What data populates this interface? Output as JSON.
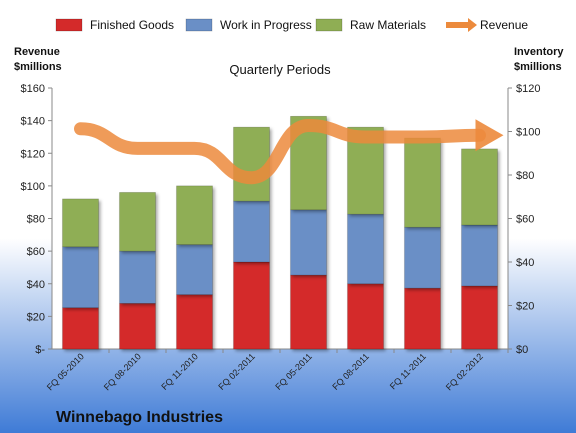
{
  "chart_data": {
    "type": "bar",
    "subtitle": "Quarterly Periods",
    "company": "Winnebago Industries",
    "left_axis_label": [
      "Revenue",
      "$millions"
    ],
    "right_axis_label": [
      "Inventory",
      "$millions"
    ],
    "categories": [
      "FQ 05-2010",
      "FQ 08-2010",
      "FQ 11-2010",
      "FQ 02-2011",
      "FQ 05-2011",
      "FQ 08-2011",
      "FQ 11-2011",
      "FQ 02-2012"
    ],
    "stacked": true,
    "series": [
      {
        "name": "Finished Goods",
        "color": "#d42a2a",
        "axis": "right",
        "values": [
          19,
          21,
          25,
          40,
          34,
          30,
          28,
          29
        ]
      },
      {
        "name": "Work in Progress",
        "color": "#6a8fc6",
        "axis": "right",
        "values": [
          28,
          24,
          23,
          28,
          30,
          32,
          28,
          28
        ]
      },
      {
        "name": "Raw Materials",
        "color": "#8fae54",
        "axis": "right",
        "values": [
          22,
          27,
          27,
          34,
          43,
          40,
          41,
          35
        ]
      },
      {
        "name": "Revenue",
        "color": "#ec8a3c",
        "type": "line",
        "axis": "left",
        "values": [
          135,
          123,
          123,
          105,
          137,
          130,
          130,
          131
        ]
      }
    ],
    "left_axis": {
      "ylim": [
        0,
        160
      ],
      "ticks": [
        0,
        20,
        40,
        60,
        80,
        100,
        120,
        140,
        160
      ],
      "tick_labels": [
        "$-",
        "$20",
        "$40",
        "$60",
        "$80",
        "$100",
        "$120",
        "$140",
        "$160"
      ]
    },
    "right_axis": {
      "ylim": [
        0,
        120
      ],
      "ticks": [
        0,
        20,
        40,
        60,
        80,
        100,
        120
      ],
      "tick_labels": [
        "$0",
        "$20",
        "$40",
        "$60",
        "$80",
        "$100",
        "$120"
      ]
    },
    "legend_position": "top",
    "grid": false,
    "colors": {
      "background_top": "#ffffff",
      "background_bottom": "#4f86d9",
      "plot_bg": "#ffffff"
    }
  }
}
